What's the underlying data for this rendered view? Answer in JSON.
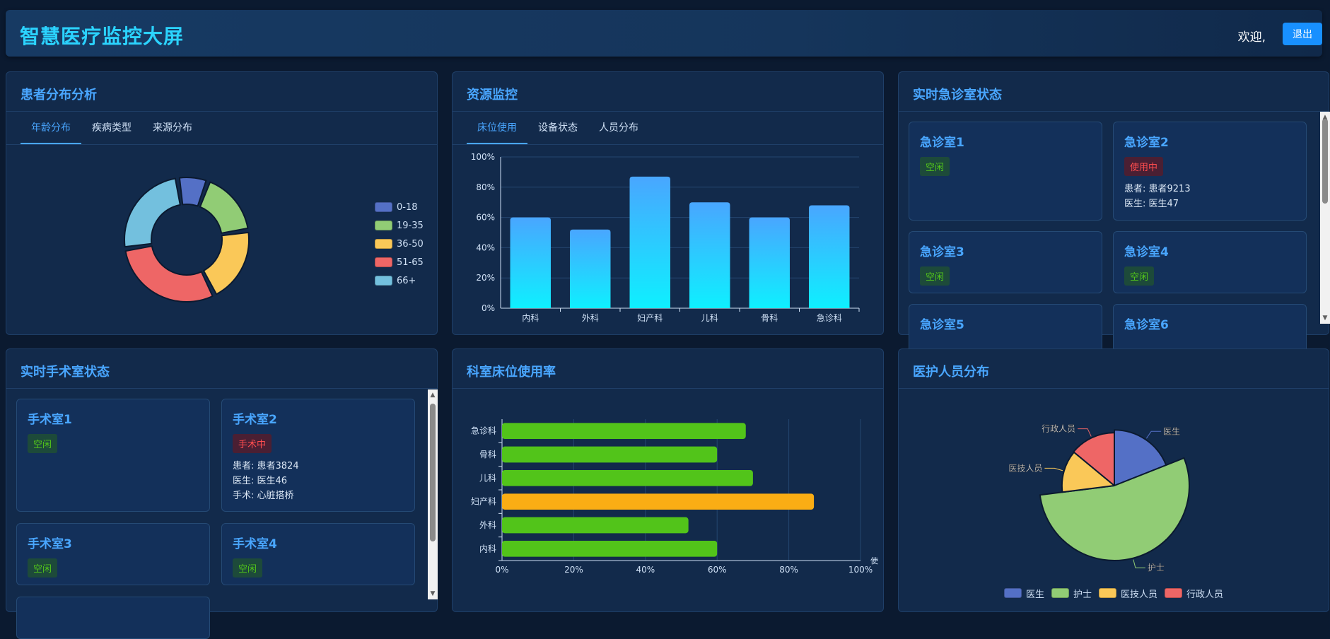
{
  "header": {
    "title": "智慧医疗监控大屏",
    "welcome": "欢迎,",
    "logout_label": "退出"
  },
  "patient_panel": {
    "title": "患者分布分析",
    "tabs": [
      "年龄分布",
      "疾病类型",
      "来源分布"
    ],
    "active_tab": 0
  },
  "resource_panel": {
    "title": "资源监控",
    "tabs": [
      "床位使用",
      "设备状态",
      "人员分布"
    ],
    "active_tab": 0
  },
  "er_panel": {
    "title": "实时急诊室状态",
    "rooms": [
      {
        "name": "急诊室1",
        "status": "空闲",
        "state": "free",
        "info": []
      },
      {
        "name": "急诊室2",
        "status": "使用中",
        "state": "busy",
        "info": [
          "患者: 患者9213",
          "医生: 医生47"
        ]
      },
      {
        "name": "急诊室3",
        "status": "空闲",
        "state": "free",
        "info": []
      },
      {
        "name": "急诊室4",
        "status": "空闲",
        "state": "free",
        "info": []
      },
      {
        "name": "急诊室5",
        "status": "",
        "state": "",
        "info": []
      },
      {
        "name": "急诊室6",
        "status": "",
        "state": "",
        "info": []
      }
    ]
  },
  "or_panel": {
    "title": "实时手术室状态",
    "rooms": [
      {
        "name": "手术室1",
        "status": "空闲",
        "state": "free",
        "info": []
      },
      {
        "name": "手术室2",
        "status": "手术中",
        "state": "busy",
        "info": [
          "患者: 患者3824",
          "医生: 医生46",
          "手术: 心脏搭桥"
        ]
      },
      {
        "name": "手术室3",
        "status": "空闲",
        "state": "free",
        "info": []
      },
      {
        "name": "手术室4",
        "status": "空闲",
        "state": "free",
        "info": []
      }
    ]
  },
  "bed_rate_panel": {
    "title": "科室床位使用率"
  },
  "staff_panel": {
    "title": "医护人员分布"
  },
  "colors": {
    "blue": "#5470c6",
    "green": "#91cc75",
    "yellow": "#fac858",
    "red": "#ee6666",
    "cyan": "#73c0de",
    "bar_green": "#52c41a",
    "bar_orange": "#faad14",
    "bar_top": "#49a6ff",
    "bar_bottom": "#0ef0ff"
  },
  "chart_data": [
    {
      "type": "pie",
      "title": "",
      "labels": [
        "0-18",
        "19-35",
        "36-50",
        "51-65",
        "66+"
      ],
      "values": [
        8,
        17,
        20,
        30,
        25
      ],
      "colors": [
        "#5470c6",
        "#91cc75",
        "#fac858",
        "#ee6666",
        "#73c0de"
      ],
      "donut": true,
      "legend": "right"
    },
    {
      "type": "bar",
      "title": "",
      "categories": [
        "内科",
        "外科",
        "妇产科",
        "儿科",
        "骨科",
        "急诊科"
      ],
      "values": [
        60,
        52,
        87,
        70,
        60,
        68
      ],
      "y_ticks": [
        "0%",
        "20%",
        "40%",
        "60%",
        "80%",
        "100%"
      ],
      "ylim": [
        0,
        100
      ],
      "grid": true
    },
    {
      "type": "bar",
      "orientation": "horizontal",
      "title": "",
      "categories": [
        "内科",
        "外科",
        "妇产科",
        "儿科",
        "骨科",
        "急诊科"
      ],
      "values": [
        60,
        52,
        87,
        70,
        60,
        68
      ],
      "highlight": "妇产科",
      "x_ticks": [
        "0%",
        "20%",
        "40%",
        "60%",
        "80%",
        "100%"
      ],
      "xlim": [
        0,
        100
      ],
      "axis_end_label": "使",
      "grid": true
    },
    {
      "type": "pie",
      "title": "",
      "labels": [
        "医生",
        "护士",
        "医技人员",
        "行政人员"
      ],
      "values": [
        19,
        54,
        13,
        14
      ],
      "colors": [
        "#5470c6",
        "#91cc75",
        "#fac858",
        "#ee6666"
      ],
      "rose": true,
      "legend": "bottom"
    }
  ]
}
